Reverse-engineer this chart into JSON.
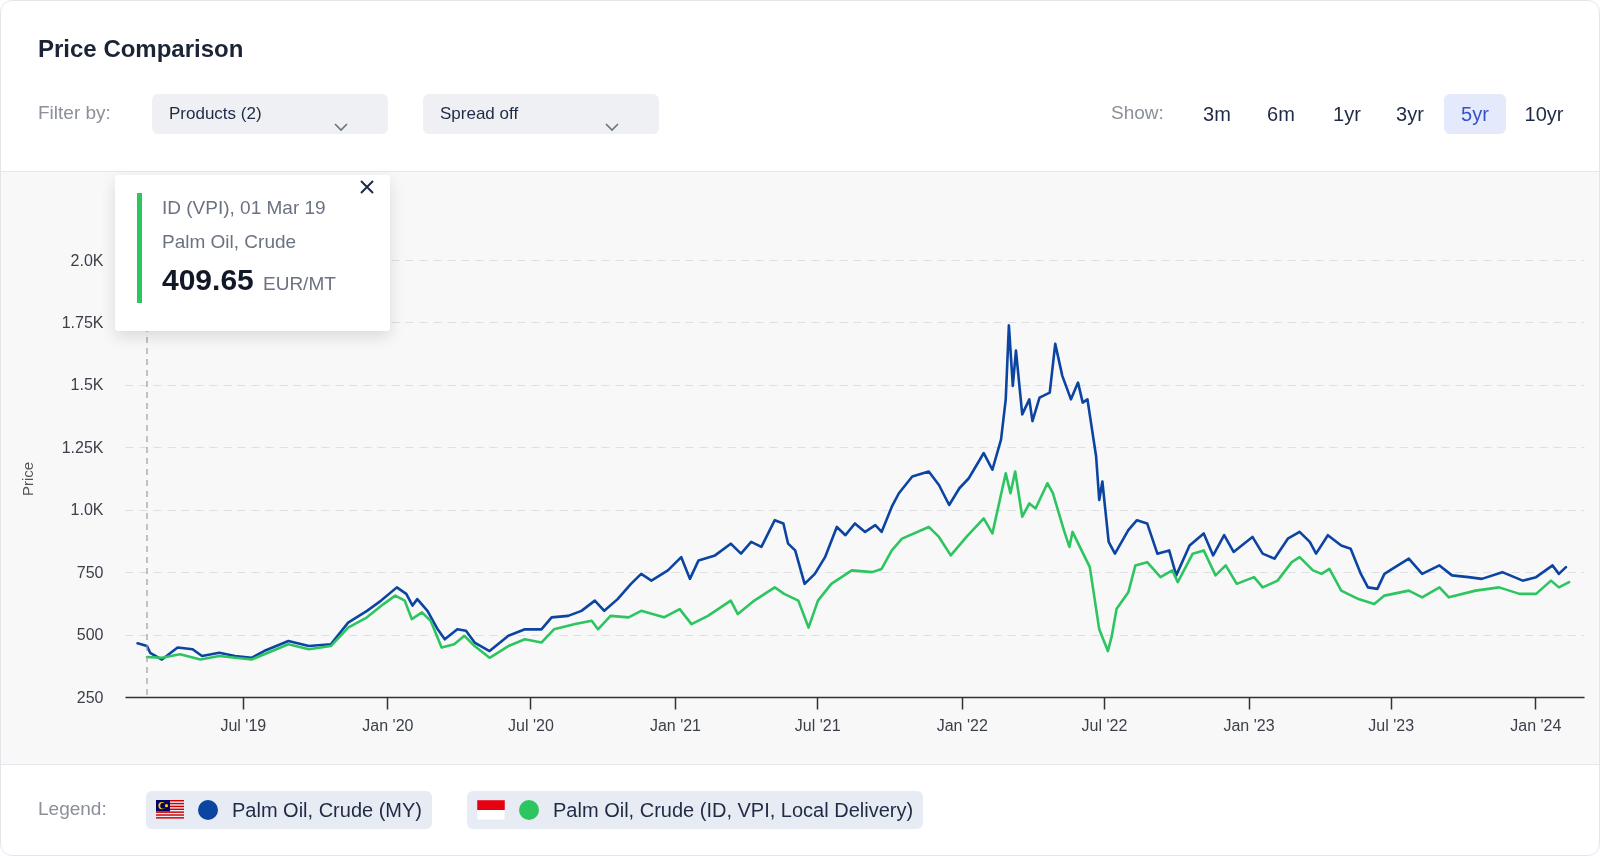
{
  "chart_data": {
    "type": "line",
    "title": "Price Comparison",
    "ylabel": "Price",
    "xlim": [
      "2019-02-01",
      "2024-03-03"
    ],
    "xticks": [
      {
        "value": "2019-07-01",
        "label": "Jul '19"
      },
      {
        "value": "2020-01-01",
        "label": "Jan '20"
      },
      {
        "value": "2020-07-01",
        "label": "Jul '20"
      },
      {
        "value": "2021-01-01",
        "label": "Jan '21"
      },
      {
        "value": "2021-07-01",
        "label": "Jul '21"
      },
      {
        "value": "2022-01-01",
        "label": "Jan '22"
      },
      {
        "value": "2022-07-01",
        "label": "Jul '22"
      },
      {
        "value": "2023-01-01",
        "label": "Jan '23"
      },
      {
        "value": "2023-07-01",
        "label": "Jul '23"
      },
      {
        "value": "2024-01-01",
        "label": "Jan '24"
      }
    ],
    "ylim": [
      250,
      2000
    ],
    "yticks": [
      250,
      500,
      750,
      {
        "value": 1000,
        "label": "1.0K"
      },
      {
        "value": 1250,
        "label": "1.25K"
      },
      {
        "value": 1500,
        "label": "1.5K"
      },
      {
        "value": 1750,
        "label": "1.75K"
      },
      {
        "value": 2000,
        "label": "2.0K"
      }
    ],
    "grid": "y",
    "legend": "bottom",
    "ref_lines": [
      {
        "axis": "x",
        "value": "2019-03-01",
        "color": "#9e9e9e",
        "line_style": "dashed"
      }
    ],
    "annotations": [
      "ID (VPI), 01 Mar 19",
      "Palm Oil, Crude",
      "409.65",
      "EUR/MT",
      "Filter by:",
      "Products (2)",
      "Spread off",
      "Show:",
      "3m",
      "6m",
      "1yr",
      "3yr",
      "5yr",
      "10yr",
      "Legend:"
    ],
    "series": [
      {
        "name": "Palm Oil, Crude (MY)",
        "color": "#0b44a1",
        "x": [
          "2019-02-17",
          "2019-03-01",
          "2019-03-05",
          "2019-03-20",
          "2019-04-09",
          "2019-04-28",
          "2019-05-10",
          "2019-06-01",
          "2019-06-21",
          "2019-07-12",
          "2019-07-28",
          "2019-08-28",
          "2019-09-23",
          "2019-10-21",
          "2019-11-12",
          "2019-12-06",
          "2019-12-24",
          "2020-01-13",
          "2020-01-25",
          "2020-02-02",
          "2020-02-08",
          "2020-02-21",
          "2020-03-05",
          "2020-03-14",
          "2020-03-30",
          "2020-04-10",
          "2020-04-21",
          "2020-05-10",
          "2020-06-03",
          "2020-06-24",
          "2020-07-15",
          "2020-07-28",
          "2020-08-18",
          "2020-09-04",
          "2020-09-21",
          "2020-10-03",
          "2020-10-20",
          "2020-11-06",
          "2020-11-19",
          "2020-12-02",
          "2020-12-23",
          "2021-01-09",
          "2021-01-20",
          "2021-01-31",
          "2021-02-21",
          "2021-03-13",
          "2021-03-26",
          "2021-04-08",
          "2021-04-21",
          "2021-05-08",
          "2021-05-19",
          "2021-05-25",
          "2021-06-03",
          "2021-06-15",
          "2021-06-28",
          "2021-07-11",
          "2021-07-26",
          "2021-08-06",
          "2021-08-18",
          "2021-08-31",
          "2021-09-13",
          "2021-09-21",
          "2021-10-04",
          "2021-10-13",
          "2021-10-30",
          "2021-11-20",
          "2021-12-03",
          "2021-12-16",
          "2021-12-29",
          "2022-01-10",
          "2022-01-29",
          "2022-02-09",
          "2022-02-20",
          "2022-02-26",
          "2022-03-02",
          "2022-03-07",
          "2022-03-11",
          "2022-03-19",
          "2022-03-28",
          "2022-04-01",
          "2022-04-10",
          "2022-04-23",
          "2022-04-30",
          "2022-05-09",
          "2022-05-20",
          "2022-05-29",
          "2022-06-04",
          "2022-06-10",
          "2022-06-21",
          "2022-06-25",
          "2022-06-29",
          "2022-07-07",
          "2022-07-15",
          "2022-08-01",
          "2022-08-12",
          "2022-08-25",
          "2022-09-07",
          "2022-09-22",
          "2022-10-01",
          "2022-10-18",
          "2022-11-05",
          "2022-11-17",
          "2022-12-01",
          "2022-12-13",
          "2023-01-06",
          "2023-01-19",
          "2023-02-03",
          "2023-02-20",
          "2023-03-07",
          "2023-03-20",
          "2023-03-28",
          "2023-04-12",
          "2023-04-29",
          "2023-05-11",
          "2023-05-24",
          "2023-06-02",
          "2023-06-14",
          "2023-06-23",
          "2023-07-03",
          "2023-07-24",
          "2023-08-10",
          "2023-09-01",
          "2023-09-17",
          "2023-10-08",
          "2023-10-25",
          "2023-11-20",
          "2023-12-16",
          "2024-01-02",
          "2024-01-23",
          "2024-01-31",
          "2024-02-09"
        ],
        "values": [
          465,
          454,
          427,
          400,
          448,
          441,
          414,
          427,
          414,
          407,
          434,
          474,
          454,
          461,
          548,
          595,
          636,
          689,
          663,
          616,
          642,
          595,
          521,
          481,
          521,
          515,
          468,
          434,
          495,
          521,
          521,
          569,
          575,
          595,
          636,
          595,
          642,
          703,
          743,
          716,
          757,
          810,
          723,
          797,
          817,
          864,
          824,
          871,
          851,
          958,
          945,
          864,
          837,
          703,
          743,
          810,
          931,
          898,
          945,
          911,
          938,
          911,
          1012,
          1066,
          1133,
          1153,
          1099,
          1019,
          1086,
          1126,
          1227,
          1160,
          1281,
          1442,
          1738,
          1496,
          1637,
          1382,
          1442,
          1355,
          1449,
          1469,
          1664,
          1536,
          1442,
          1509,
          1429,
          1442,
          1214,
          1039,
          1113,
          871,
          824,
          918,
          958,
          945,
          824,
          837,
          737,
          857,
          905,
          817,
          898,
          831,
          891,
          824,
          804,
          884,
          911,
          871,
          824,
          898,
          857,
          844,
          743,
          689,
          683,
          743,
          763,
          804,
          743,
          777,
          737,
          730,
          723,
          750,
          716,
          730,
          777,
          743,
          770
        ]
      },
      {
        "name": "Palm Oil, Crude (ID, VPI, Local Delivery)",
        "color": "#2cc55f",
        "x": [
          "2019-03-01",
          "2019-03-20",
          "2019-04-12",
          "2019-05-08",
          "2019-06-01",
          "2019-07-12",
          "2019-08-28",
          "2019-09-23",
          "2019-10-21",
          "2019-11-12",
          "2019-12-06",
          "2019-12-27",
          "2020-01-11",
          "2020-01-23",
          "2020-02-01",
          "2020-02-14",
          "2020-02-25",
          "2020-03-10",
          "2020-03-26",
          "2020-04-08",
          "2020-04-21",
          "2020-05-10",
          "2020-06-03",
          "2020-06-24",
          "2020-07-15",
          "2020-07-31",
          "2020-08-27",
          "2020-09-17",
          "2020-09-25",
          "2020-10-11",
          "2020-11-03",
          "2020-11-19",
          "2020-12-18",
          "2021-01-07",
          "2021-01-22",
          "2021-02-12",
          "2021-03-13",
          "2021-03-22",
          "2021-04-12",
          "2021-05-08",
          "2021-05-20",
          "2021-06-07",
          "2021-06-20",
          "2021-07-02",
          "2021-07-19",
          "2021-08-14",
          "2021-09-09",
          "2021-09-21",
          "2021-10-04",
          "2021-10-17",
          "2021-11-20",
          "2021-12-03",
          "2021-12-18",
          "2022-01-07",
          "2022-01-29",
          "2022-02-09",
          "2022-02-26",
          "2022-03-04",
          "2022-03-10",
          "2022-03-19",
          "2022-03-28",
          "2022-04-05",
          "2022-04-20",
          "2022-04-27",
          "2022-05-11",
          "2022-05-18",
          "2022-05-22",
          "2022-06-13",
          "2022-06-25",
          "2022-07-06",
          "2022-07-11",
          "2022-07-17",
          "2022-08-01",
          "2022-08-10",
          "2022-08-25",
          "2022-09-11",
          "2022-09-26",
          "2022-10-03",
          "2022-10-22",
          "2022-11-05",
          "2022-11-20",
          "2022-12-03",
          "2022-12-17",
          "2023-01-08",
          "2023-01-19",
          "2023-02-07",
          "2023-02-25",
          "2023-03-07",
          "2023-03-24",
          "2023-04-04",
          "2023-04-14",
          "2023-04-29",
          "2023-05-21",
          "2023-06-10",
          "2023-06-23",
          "2023-07-24",
          "2023-08-10",
          "2023-09-01",
          "2023-09-13",
          "2023-10-17",
          "2023-11-16",
          "2023-12-12",
          "2024-01-02",
          "2024-01-21",
          "2024-01-31",
          "2024-02-13"
        ],
        "values": [
          410,
          407,
          421,
          400,
          414,
          400,
          461,
          441,
          454,
          528,
          569,
          622,
          656,
          636,
          562,
          589,
          555,
          448,
          461,
          495,
          454,
          407,
          454,
          481,
          468,
          521,
          542,
          555,
          521,
          575,
          569,
          595,
          569,
          602,
          542,
          575,
          636,
          582,
          636,
          689,
          663,
          636,
          528,
          636,
          703,
          757,
          750,
          763,
          837,
          884,
          931,
          891,
          817,
          891,
          965,
          905,
          1146,
          1066,
          1153,
          972,
          1025,
          1005,
          1106,
          1066,
          918,
          851,
          911,
          770,
          521,
          434,
          495,
          602,
          669,
          777,
          790,
          730,
          757,
          710,
          824,
          837,
          737,
          777,
          703,
          730,
          689,
          716,
          790,
          810,
          757,
          743,
          763,
          676,
          642,
          622,
          656,
          676,
          649,
          689,
          649,
          676,
          689,
          663,
          663,
          716,
          689,
          710
        ]
      }
    ]
  }
}
